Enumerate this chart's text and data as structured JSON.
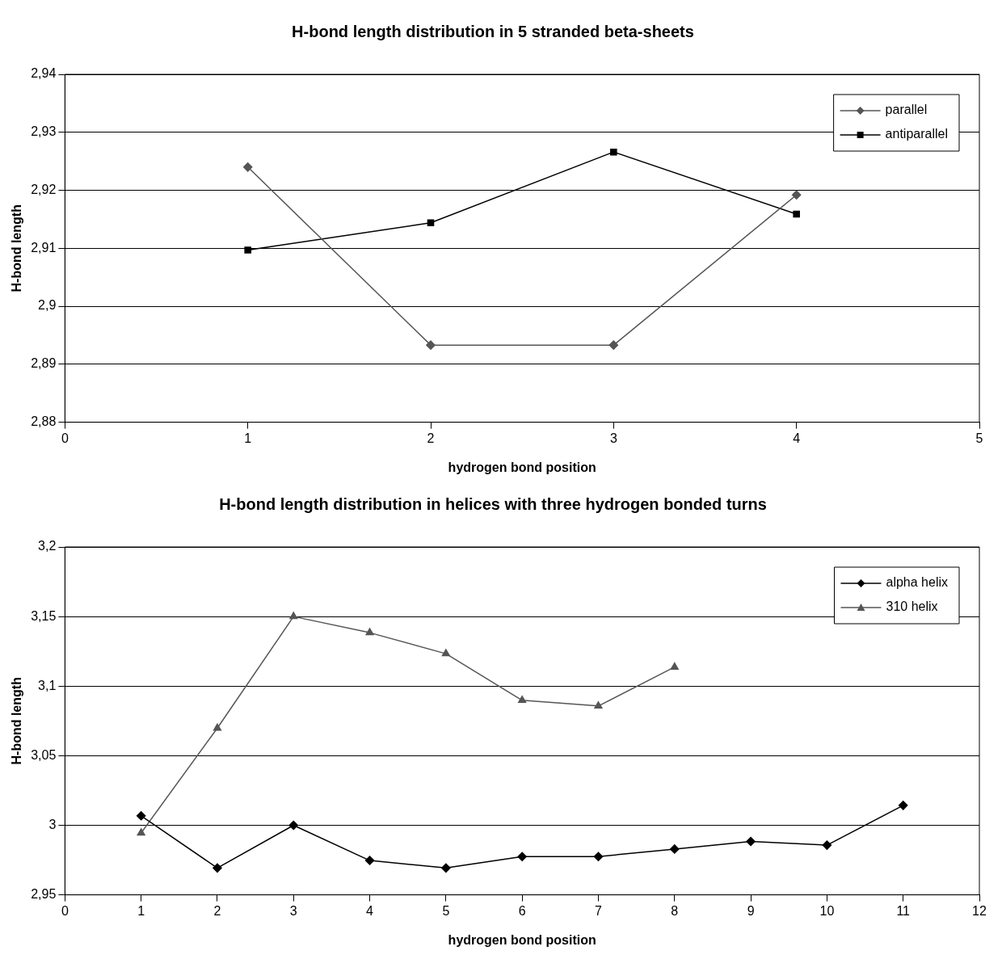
{
  "chart_data": [
    {
      "type": "line",
      "title": "H-bond length distribution in 5 stranded beta-sheets",
      "xlabel": "hydrogen bond position",
      "ylabel": "H-bond length",
      "x": [
        1,
        2,
        3,
        4
      ],
      "series": [
        {
          "name": "parallel",
          "color": "#555555",
          "marker": "diamond",
          "values": [
            2.924,
            2.8933,
            2.8933,
            2.9192
          ]
        },
        {
          "name": "antiparallel",
          "color": "#000000",
          "marker": "square",
          "values": [
            2.9097,
            2.9144,
            2.9266,
            2.9159
          ]
        }
      ],
      "xlim": [
        0,
        5
      ],
      "xticks": [
        0,
        1,
        2,
        3,
        4,
        5
      ],
      "ylim": [
        2.88,
        2.94
      ],
      "yticks": [
        {
          "value": 2.88,
          "label": "2,88"
        },
        {
          "value": 2.89,
          "label": "2,89"
        },
        {
          "value": 2.9,
          "label": "2,9"
        },
        {
          "value": 2.91,
          "label": "2,91"
        },
        {
          "value": 2.92,
          "label": "2,92"
        },
        {
          "value": 2.93,
          "label": "2,93"
        },
        {
          "value": 2.94,
          "label": "2,94"
        }
      ],
      "grid": "y",
      "legend": "top right"
    },
    {
      "type": "line",
      "title": "H-bond length distribution in helices with three hydrogen bonded turns",
      "xlabel": "hydrogen bond position",
      "ylabel": "H-bond length",
      "series": [
        {
          "name": "alpha helix",
          "color": "#000000",
          "marker": "diamond",
          "x": [
            1,
            2,
            3,
            4,
            5,
            6,
            7,
            8,
            9,
            10,
            11
          ],
          "values": [
            3.0068,
            2.9693,
            3.0,
            2.9747,
            2.9693,
            2.9775,
            2.9775,
            2.9829,
            2.9884,
            2.9857,
            3.0143
          ]
        },
        {
          "name": "310 helix",
          "color": "#555555",
          "marker": "triangle",
          "x": [
            1,
            2,
            3,
            4,
            5,
            6,
            7,
            8
          ],
          "values": [
            2.9945,
            3.0698,
            3.15,
            3.1384,
            3.1233,
            3.0898,
            3.0857,
            3.1137
          ]
        }
      ],
      "xlim": [
        0,
        12
      ],
      "xticks": [
        0,
        1,
        2,
        3,
        4,
        5,
        6,
        7,
        8,
        9,
        10,
        11,
        12
      ],
      "ylim": [
        2.95,
        3.2
      ],
      "yticks": [
        {
          "value": 2.95,
          "label": "2,95"
        },
        {
          "value": 3.0,
          "label": "3"
        },
        {
          "value": 3.05,
          "label": "3,05"
        },
        {
          "value": 3.1,
          "label": "3,1"
        },
        {
          "value": 3.15,
          "label": "3,15"
        },
        {
          "value": 3.2,
          "label": "3,2"
        }
      ],
      "grid": "y",
      "legend": "top right"
    }
  ]
}
